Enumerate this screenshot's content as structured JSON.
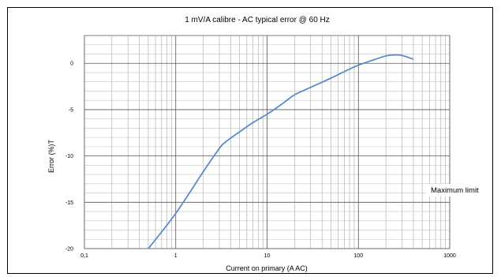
{
  "chart_data": {
    "type": "line",
    "title": "1 mV/A calibre - AC typical error @ 60 Hz",
    "xlabel": "Current on primary (A AC)",
    "ylabel": "Error (%)T",
    "x_scale": "log",
    "xlim": [
      0.1,
      1000
    ],
    "ylim": [
      -20,
      3
    ],
    "x_ticks": [
      {
        "value": 0.1,
        "label": "0,1"
      },
      {
        "value": 1,
        "label": "1"
      },
      {
        "value": 10,
        "label": "10"
      },
      {
        "value": 100,
        "label": "100"
      },
      {
        "value": 1000,
        "label": "1000"
      }
    ],
    "y_ticks": [
      {
        "value": 0,
        "label": "0"
      },
      {
        "value": -5,
        "label": "-5"
      },
      {
        "value": -10,
        "label": "-10"
      },
      {
        "value": -15,
        "label": "-15"
      },
      {
        "value": -20,
        "label": "-20"
      }
    ],
    "grid": true,
    "annotation": "Maximum limit",
    "series": [
      {
        "color": "#5b8cc8",
        "x": [
          0.5,
          0.7,
          1,
          1.5,
          2,
          3,
          3.5,
          5,
          7,
          10,
          15,
          20,
          30,
          50,
          70,
          100,
          150,
          200,
          250,
          300,
          400
        ],
        "y": [
          -20,
          -18.2,
          -16.2,
          -13.6,
          -11.7,
          -9.2,
          -8.5,
          -7.4,
          -6.4,
          -5.5,
          -4.3,
          -3.4,
          -2.6,
          -1.6,
          -0.9,
          -0.2,
          0.4,
          0.8,
          0.9,
          0.85,
          0.45
        ]
      }
    ]
  }
}
